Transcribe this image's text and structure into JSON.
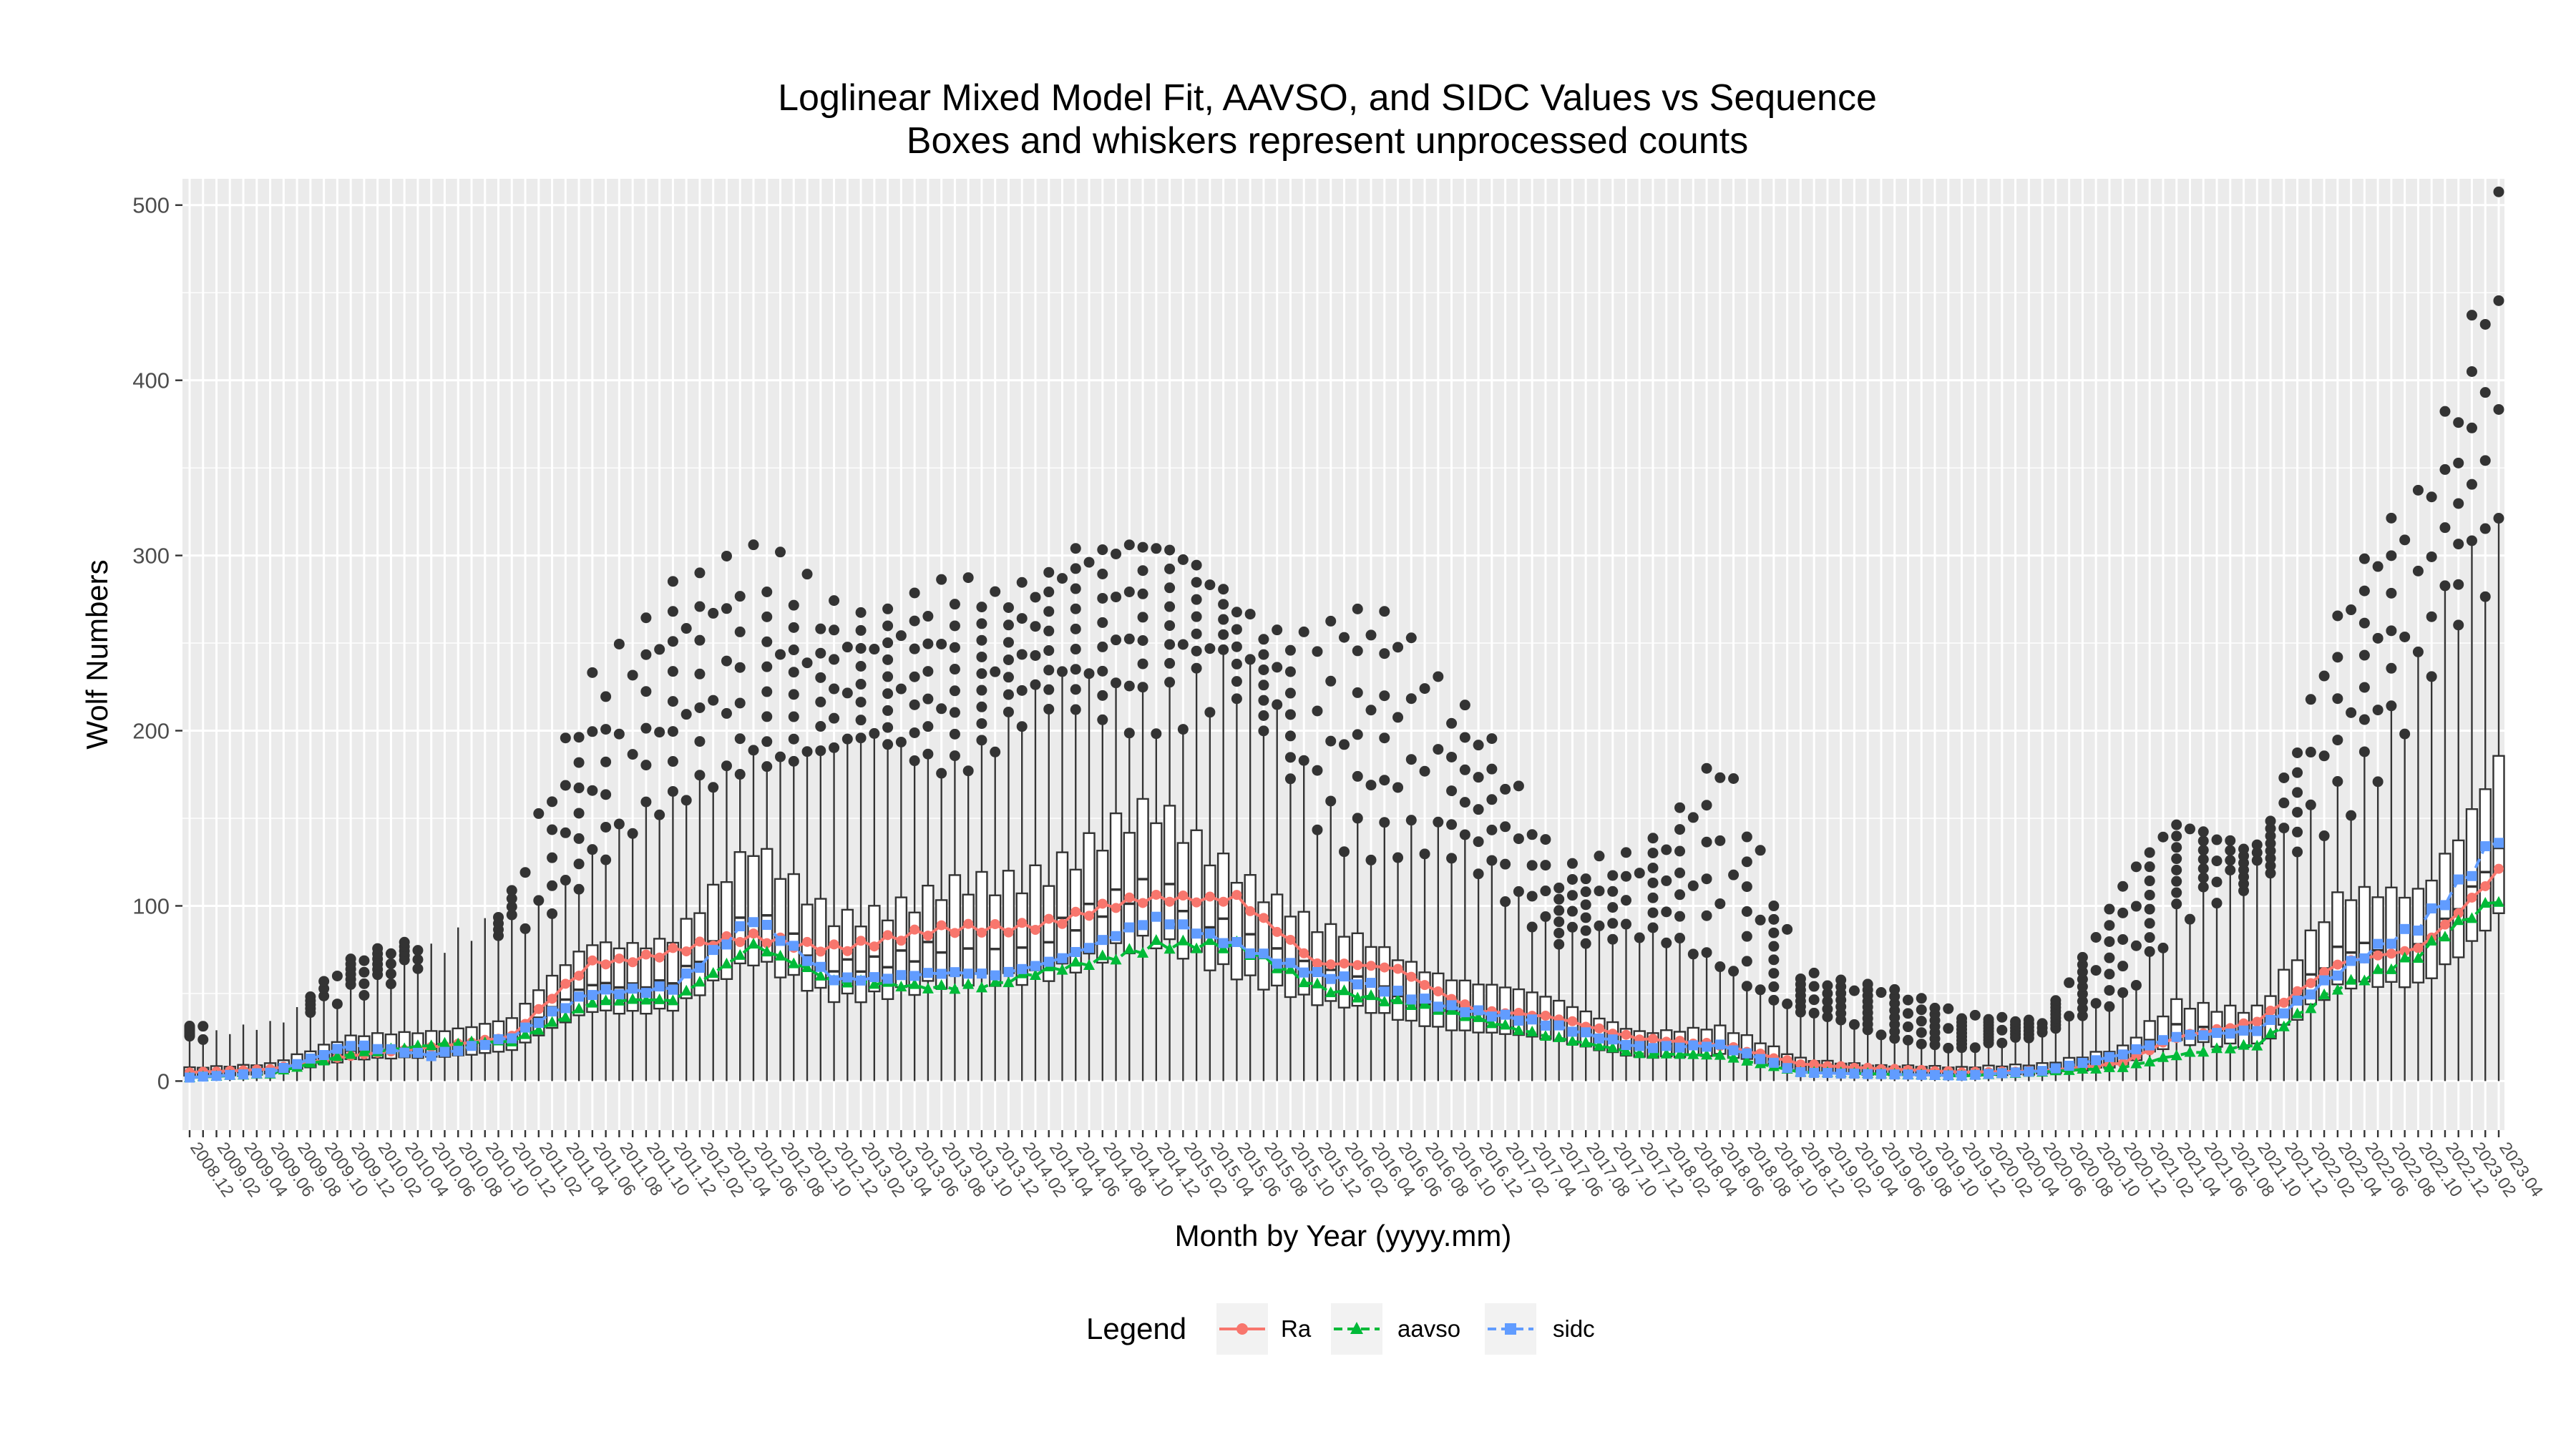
{
  "chart_data": {
    "type": "line",
    "title": "Loglinear Mixed Model Fit, AAVSO, and SIDC Values vs Sequence",
    "subtitle": "Boxes and whiskers represent unprocessed counts",
    "xlabel": "Month by Year (yyyy.mm)",
    "ylabel": "Wolf Numbers",
    "ylim": [
      -28,
      515
    ],
    "y_ticks": [
      0,
      100,
      200,
      300,
      400,
      500
    ],
    "grid": true,
    "legend": {
      "title": "Legend",
      "position": "bottom"
    },
    "x_ticks": [
      "2008.12",
      "2009.02",
      "2009.04",
      "2009.06",
      "2009.08",
      "2009.10",
      "2009.12",
      "2010.02",
      "2010.04",
      "2010.06",
      "2010.08",
      "2010.10",
      "2010.12",
      "2011.02",
      "2011.04",
      "2011.06",
      "2011.08",
      "2011.10",
      "2011.12",
      "2012.02",
      "2012.04",
      "2012.06",
      "2012.08",
      "2012.10",
      "2012.12",
      "2013.02",
      "2013.04",
      "2013.06",
      "2013.08",
      "2013.10",
      "2013.12",
      "2014.02",
      "2014.04",
      "2014.06",
      "2014.08",
      "2014.10",
      "2014.12",
      "2015.02",
      "2015.04",
      "2015.06",
      "2015.08",
      "2015.10",
      "2015.12",
      "2016.02",
      "2016.04",
      "2016.06",
      "2016.08",
      "2016.10",
      "2016.12",
      "2017.02",
      "2017.04",
      "2017.06",
      "2017.08",
      "2017.10",
      "2017.12",
      "2018.02",
      "2018.04",
      "2018.06",
      "2018.08",
      "2018.10",
      "2018.12",
      "2019.02",
      "2019.04",
      "2019.06",
      "2019.08",
      "2019.10",
      "2019.12",
      "2020.02",
      "2020.04",
      "2020.06",
      "2020.08",
      "2020.10",
      "2020.12",
      "2021.02",
      "2021.04",
      "2021.06",
      "2021.08",
      "2021.10",
      "2021.12",
      "2022.02",
      "2022.04",
      "2022.06",
      "2022.08",
      "2022.10",
      "2022.12",
      "2023.02",
      "2023.04"
    ],
    "anchor_months": [
      0,
      6,
      12,
      18,
      24,
      30,
      36,
      42,
      48,
      54,
      60,
      66,
      72,
      78,
      84,
      90,
      96,
      102,
      108,
      114,
      120,
      126,
      132,
      138,
      144,
      148,
      154,
      160,
      166,
      172
    ],
    "series": [
      {
        "name": "Ra",
        "color": "#F8766D",
        "marker": "circle",
        "dash": "solid",
        "anchor_values": [
          5,
          7,
          14,
          20,
          25,
          68,
          75,
          80,
          78,
          82,
          88,
          95,
          102,
          108,
          65,
          65,
          40,
          35,
          25,
          20,
          10,
          7,
          5,
          6,
          10,
          25,
          35,
          65,
          78,
          118
        ]
      },
      {
        "name": "aavso",
        "color": "#00BA38",
        "marker": "triangle",
        "dash": "dashed",
        "anchor_values": [
          2,
          4,
          16,
          20,
          23,
          45,
          45,
          80,
          55,
          55,
          55,
          65,
          80,
          75,
          55,
          45,
          35,
          25,
          15,
          15,
          5,
          4,
          3,
          5,
          8,
          15,
          20,
          55,
          70,
          105
        ]
      },
      {
        "name": "sidc",
        "color": "#619CFF",
        "marker": "square",
        "dash": "dashed",
        "anchor_values": [
          2,
          5,
          20,
          15,
          25,
          50,
          55,
          90,
          60,
          60,
          60,
          75,
          90,
          80,
          60,
          50,
          40,
          30,
          20,
          20,
          5,
          4,
          3,
          6,
          15,
          25,
          30,
          60,
          90,
          140
        ]
      }
    ],
    "boxes": {
      "description": "Box-and-whisker per month of unprocessed counts",
      "anchor_months": [
        0,
        6,
        12,
        18,
        24,
        30,
        36,
        42,
        48,
        54,
        60,
        66,
        72,
        78,
        84,
        90,
        96,
        102,
        108,
        114,
        120,
        126,
        132,
        138,
        144,
        148,
        154,
        160,
        166,
        172
      ],
      "median": [
        4,
        6,
        16,
        20,
        24,
        55,
        60,
        90,
        70,
        70,
        80,
        95,
        105,
        90,
        60,
        50,
        40,
        30,
        20,
        20,
        8,
        5,
        4,
        6,
        12,
        30,
        30,
        70,
        80,
        130
      ],
      "whisker_high": [
        25,
        30,
        55,
        70,
        90,
        130,
        150,
        200,
        180,
        190,
        200,
        210,
        230,
        220,
        160,
        140,
        120,
        90,
        80,
        70,
        40,
        25,
        20,
        25,
        50,
        100,
        110,
        170,
        220,
        300
      ],
      "outlier_max": [
        30,
        35,
        65,
        80,
        105,
        215,
        285,
        280,
        270,
        270,
        265,
        315,
        290,
        280,
        250,
        250,
        210,
        110,
        130,
        180,
        60,
        55,
        35,
        35,
        110,
        140,
        140,
        250,
        330,
        495
      ]
    }
  }
}
